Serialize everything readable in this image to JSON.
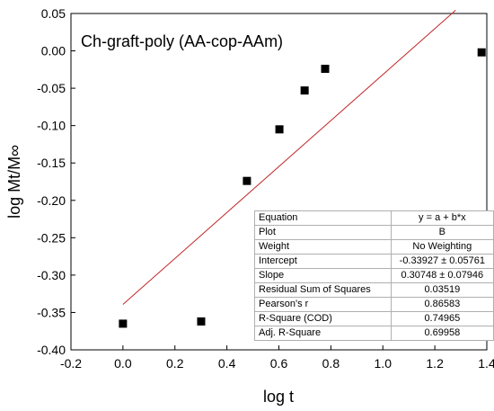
{
  "chart_data": {
    "type": "scatter",
    "title": "Ch-graft-poly (AA-cop-AAm)",
    "xlabel": "log t",
    "ylabel": "log Mt/M∞",
    "xlim": [
      -0.2,
      1.4
    ],
    "ylim": [
      -0.4,
      0.05
    ],
    "x_ticks": [
      "-0.2",
      "0.0",
      "0.2",
      "0.4",
      "0.6",
      "0.8",
      "1.0",
      "1.2",
      "1.4"
    ],
    "y_ticks": [
      "0.05",
      "0.00",
      "-0.05",
      "-0.10",
      "-0.15",
      "-0.20",
      "-0.25",
      "-0.30",
      "-0.35",
      "-0.40"
    ],
    "grid": false,
    "series": [
      {
        "points": [
          {
            "x": 0.0,
            "y": -0.365
          },
          {
            "x": 0.301,
            "y": -0.362
          },
          {
            "x": 0.477,
            "y": -0.174
          },
          {
            "x": 0.602,
            "y": -0.105
          },
          {
            "x": 0.699,
            "y": -0.053
          },
          {
            "x": 0.778,
            "y": -0.024
          },
          {
            "x": 1.38,
            "y": -0.002
          }
        ],
        "marker": "square",
        "color": "#000000"
      }
    ],
    "fit_line": {
      "intercept": -0.33927,
      "slope": 0.30748,
      "x_range": [
        0.0,
        1.28
      ],
      "color": "#c0282a"
    },
    "table": [
      [
        "Equation",
        "y = a + b*x"
      ],
      [
        "Plot",
        "B"
      ],
      [
        "Weight",
        "No Weighting"
      ],
      [
        "Intercept",
        "-0.33927 ± 0.05761"
      ],
      [
        "Slope",
        "0.30748 ± 0.07946"
      ],
      [
        "Residual Sum of Squares",
        "0.03519"
      ],
      [
        "Pearson's r",
        "0.86583"
      ],
      [
        "R-Square (COD)",
        "0.74965"
      ],
      [
        "Adj. R-Square",
        "0.69958"
      ]
    ]
  }
}
